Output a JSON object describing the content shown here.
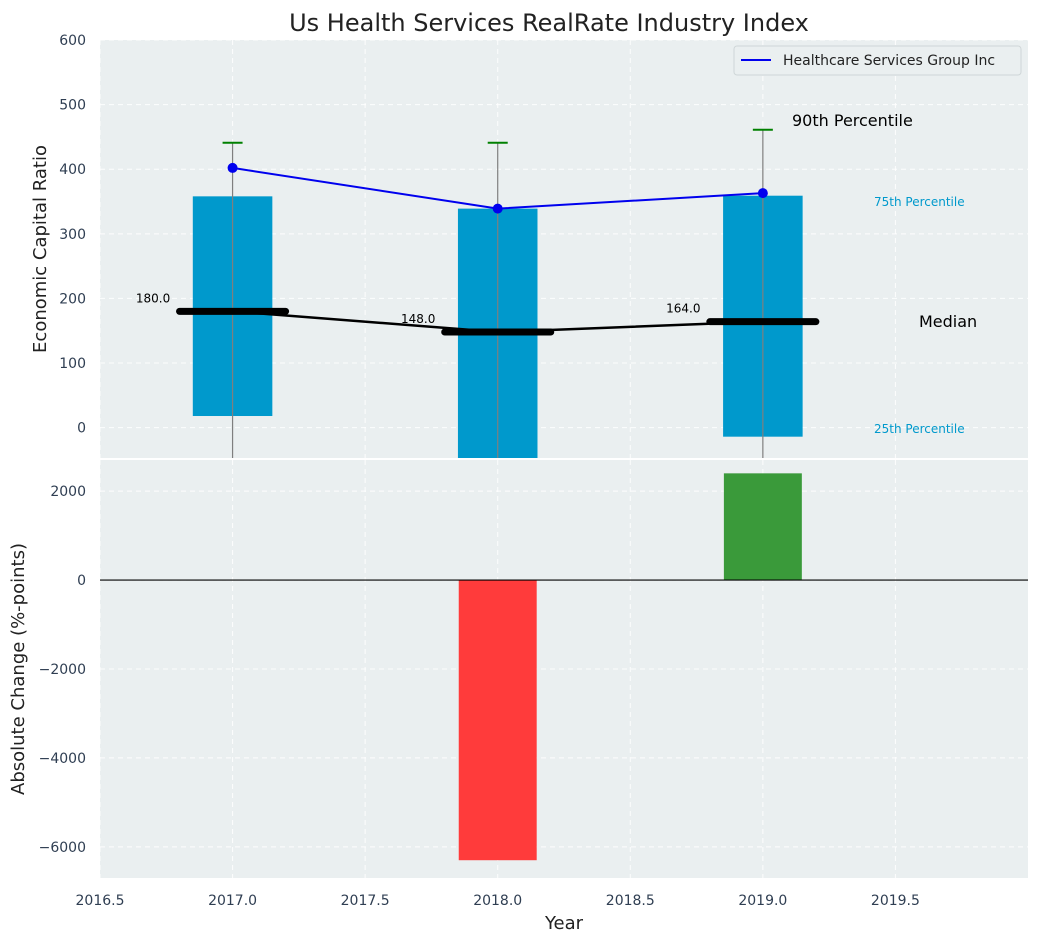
{
  "chart_data": [
    {
      "type": "bar",
      "title": "Us Health Services RealRate Industry Index",
      "ylabel": "Economic Capital Ratio",
      "xlim": [
        2016.5,
        2020.0
      ],
      "ylim": [
        -47,
        600
      ],
      "yticks": [
        0,
        100,
        200,
        300,
        400,
        500,
        600
      ],
      "grid": true,
      "categories": [
        2017,
        2018,
        2019
      ],
      "percentile_25": [
        18,
        -47,
        -14
      ],
      "percentile_75": [
        358,
        339,
        359
      ],
      "percentile_90": [
        441,
        441,
        461
      ],
      "median": [
        180.0,
        148.0,
        164.0
      ],
      "median_labels": [
        "180.0",
        "148.0",
        "164.0"
      ],
      "series": [
        {
          "name": "Healthcare Services Group Inc",
          "values": [
            402,
            339,
            363
          ]
        }
      ],
      "legend_placement": "top-right",
      "annotations": {
        "p90": "90th Percentile",
        "p75": "75th Percentile",
        "median": "Median",
        "p25": "25th Percentile"
      },
      "colors": {
        "box": "#0099cc",
        "company_line": "#0000ee",
        "median_line": "#000000",
        "whisker_cap": "#008000",
        "whisker": "#7f7f7f",
        "background": "#eaeff0"
      }
    },
    {
      "type": "bar",
      "xlabel": "Year",
      "ylabel": "Absolute Change (%-points)",
      "xlim": [
        2016.5,
        2020.0
      ],
      "ylim": [
        -6700,
        2700
      ],
      "yticks": [
        -6000,
        -4000,
        -2000,
        0,
        2000
      ],
      "xticks": [
        "2016.5",
        "2017.0",
        "2017.5",
        "2018.0",
        "2018.5",
        "2019.0",
        "2019.5"
      ],
      "grid": true,
      "categories": [
        2018,
        2019
      ],
      "values": [
        -6300,
        2400
      ],
      "colors": {
        "negative": "#ff3b3b",
        "positive": "#3a9a3a"
      }
    }
  ]
}
